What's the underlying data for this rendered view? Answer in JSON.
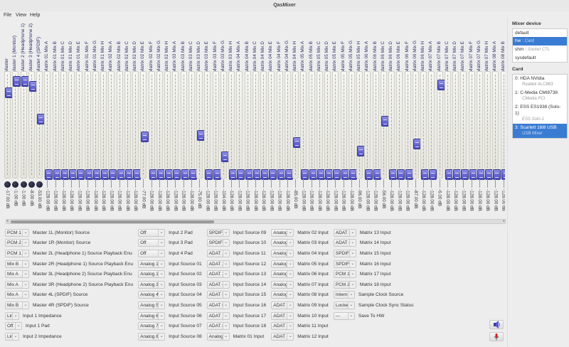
{
  "window": {
    "title": "QasMixer"
  },
  "menu": [
    "File",
    "View",
    "Help"
  ],
  "strips": {
    "names": [
      "Master",
      "Master 1 (Monitor)",
      "Master 2 (Headphone 1)",
      "Master 3 (Headphone 2)",
      "Master 4 (SPDIF)",
      "Matrix 01 Mix A",
      "Matrix 01 Mix B",
      "Matrix 01 Mix C",
      "Matrix 01 Mix D",
      "Matrix 01 Mix E",
      "Matrix 01 Mix F",
      "Matrix 01 Mix G",
      "Matrix 01 Mix H",
      "Matrix 02 Mix A",
      "Matrix 02 Mix B",
      "Matrix 02 Mix C",
      "Matrix 02 Mix D",
      "Matrix 02 Mix E",
      "Matrix 02 Mix F",
      "Matrix 02 Mix G",
      "Matrix 02 Mix H",
      "Matrix 03 Mix A",
      "Matrix 03 Mix B",
      "Matrix 03 Mix C",
      "Matrix 03 Mix D",
      "Matrix 03 Mix E",
      "Matrix 03 Mix F",
      "Matrix 03 Mix G",
      "Matrix 03 Mix H",
      "Matrix 04 Mix A",
      "Matrix 04 Mix B",
      "Matrix 04 Mix C",
      "Matrix 04 Mix D",
      "Matrix 04 Mix E",
      "Matrix 04 Mix F",
      "Matrix 04 Mix G",
      "Matrix 04 Mix H",
      "Matrix 05 Mix A",
      "Matrix 05 Mix B",
      "Matrix 05 Mix C",
      "Matrix 05 Mix D",
      "Matrix 05 Mix E",
      "Matrix 05 Mix F",
      "Matrix 05 Mix G",
      "Matrix 05 Mix H",
      "Matrix 06 Mix A",
      "Matrix 06 Mix B",
      "Matrix 06 Mix C",
      "Matrix 06 Mix D",
      "Matrix 06 Mix E",
      "Matrix 06 Mix F",
      "Matrix 06 Mix G",
      "Matrix 06 Mix H",
      "Matrix 07 Mix A",
      "Matrix 07 Mix B",
      "Matrix 07 Mix C",
      "Matrix 07 Mix D",
      "Matrix 07 Mix E",
      "Matrix 07 Mix F",
      "Matrix 07 Mix G",
      "Matrix 07 Mix H",
      "Matrix 08 Mix A",
      "Matrix 08 Mix B"
    ],
    "db": [
      -17,
      -1,
      -1,
      -8,
      -53,
      -128,
      -128,
      -128,
      -128,
      -128,
      -128,
      -128,
      -128,
      -128,
      -128,
      -128,
      -128,
      -77,
      -128,
      -128,
      -128,
      -128,
      -128,
      -128,
      -75,
      -128,
      -128,
      -104,
      -128,
      -128,
      -128,
      -128,
      -128,
      -128,
      -128,
      -128,
      -85,
      -128,
      -128,
      -128,
      -128,
      -128,
      -128,
      -128,
      -96,
      -128,
      -128,
      -56,
      -128,
      -128,
      -128,
      -87,
      -128,
      -128,
      -6,
      -128,
      -128,
      -128,
      -128,
      -128,
      -128,
      -128,
      -128
    ],
    "db_unit": "dB",
    "range_db": [
      -128,
      0
    ],
    "mute_count": 5
  },
  "controls": {
    "columns": [
      [
        {
          "value": "PCM 1",
          "label": "Master 1L (Monitor) Source"
        },
        {
          "value": "PCM 2",
          "label": "Master 1R (Monitor) Source"
        },
        {
          "value": "PCM 1",
          "label": "Master 2L (Headphone 1) Source Playback Enu"
        },
        {
          "value": "Mix B",
          "label": "Master 2R (Headphone 1) Source Playback Enu"
        },
        {
          "value": "Mix A",
          "label": "Master 3L (Headphone 2) Source Playback Enu"
        },
        {
          "value": "Mix A",
          "label": "Master 3R (Headphone 2) Source Playback Enu"
        },
        {
          "value": "Mix A",
          "label": "Master 4L (SPDIF) Source"
        },
        {
          "value": "Mix B",
          "label": "Master 4R (SPDIF) Source"
        },
        {
          "value": "Line",
          "label": "Input 1 Impedance"
        },
        {
          "value": "Off",
          "label": "Input 1 Pad"
        },
        {
          "value": "Line",
          "label": "Input 2 Impedance"
        }
      ],
      [
        {
          "value": "Off",
          "label": "Input 2 Pad"
        },
        {
          "value": "Off",
          "label": "Input 3 Pad"
        },
        {
          "value": "Off",
          "label": "Input 4 Pad"
        },
        {
          "value": "Analog 1",
          "label": "Input Source 01"
        },
        {
          "value": "Analog 1",
          "label": "Input Source 02"
        },
        {
          "value": "Analog 3",
          "label": "Input Source 03"
        },
        {
          "value": "Analog 4",
          "label": "Input Source 04"
        },
        {
          "value": "Analog 5",
          "label": "Input Source 05"
        },
        {
          "value": "Analog 6",
          "label": "Input Source 06"
        },
        {
          "value": "Analog 7",
          "label": "Input Source 07"
        },
        {
          "value": "Analog 8",
          "label": "Input Source 08"
        }
      ],
      [
        {
          "value": "SPDIF 1",
          "label": "Input Source 09"
        },
        {
          "value": "SPDIF 2",
          "label": "Input Source 10"
        },
        {
          "value": "ADAT 1",
          "label": "Input Source 11"
        },
        {
          "value": "ADAT 2",
          "label": "Input Source 12"
        },
        {
          "value": "ADAT 3",
          "label": "Input Source 13"
        },
        {
          "value": "ADAT 4",
          "label": "Input Source 14"
        },
        {
          "value": "ADAT 5",
          "label": "Input Source 15"
        },
        {
          "value": "ADAT 6",
          "label": "Input Source 16"
        },
        {
          "value": "ADAT 7",
          "label": "Input Source 17"
        },
        {
          "value": "ADAT 8",
          "label": "Input Source 18"
        },
        {
          "value": "Analog 1",
          "label": "Matrix 01 Input"
        }
      ],
      [
        {
          "value": "Analog 2",
          "label": "Matrix 02 Input"
        },
        {
          "value": "Analog 3",
          "label": "Matrix 03 Input"
        },
        {
          "value": "Analog 4",
          "label": "Matrix 04 Input"
        },
        {
          "value": "Analog 5",
          "label": "Matrix 05 Input"
        },
        {
          "value": "Analog 6",
          "label": "Matrix 06 Input"
        },
        {
          "value": "Analog 7",
          "label": "Matrix 07 Input"
        },
        {
          "value": "Analog 8",
          "label": "Matrix 08 Input"
        },
        {
          "value": "ADAT 1",
          "label": "Matrix 09 Input"
        },
        {
          "value": "ADAT 2",
          "label": "Matrix 10 Input"
        },
        {
          "value": "ADAT 3",
          "label": "Matrix 11 Input"
        },
        {
          "value": "ADAT 4",
          "label": "Matrix 12 Input"
        }
      ],
      [
        {
          "value": "ADAT 5",
          "label": "Matrix 13 Input"
        },
        {
          "value": "ADAT 6",
          "label": "Matrix 14 Input"
        },
        {
          "value": "SPDIF 1",
          "label": "Matrix 15 Input"
        },
        {
          "value": "SPDIF 2",
          "label": "Matrix 16 Input"
        },
        {
          "value": "PCM 1",
          "label": "Matrix 17 Input"
        },
        {
          "value": "PCM 2",
          "label": "Matrix 18 Input"
        },
        {
          "value": "Internal",
          "label": "Sample Clock Source"
        },
        {
          "value": "Locked",
          "label": "Sample Clock Sync Status"
        },
        {
          "value": "---",
          "label": "Save To HW"
        }
      ]
    ]
  },
  "right_panel": {
    "mixer_device_title": "Mixer device",
    "mixer_devices": [
      {
        "name": "default",
        "desc": ""
      },
      {
        "name": "hw",
        "desc": "Card",
        "selected": true
      },
      {
        "name": "shm",
        "desc": "Socket CTL"
      },
      {
        "name": "sysdefault",
        "desc": ""
      }
    ],
    "card_title": "Card",
    "cards": [
      {
        "name": "0: HDA NVidia",
        "desc": "Realtek ALC883"
      },
      {
        "name": "1: C-Media CMI8738",
        "desc": "CMedia PCI"
      },
      {
        "name": "2: ESS ES1938 (Solo-1)",
        "desc": "ESS Solo-1"
      },
      {
        "name": "3: Scarlett 18i8 USB",
        "desc": "USB Mixer",
        "selected": true
      }
    ]
  },
  "colors": {
    "knob": "#5a5ad0",
    "selection": "#3a7cd3",
    "mic": "#d02020"
  }
}
